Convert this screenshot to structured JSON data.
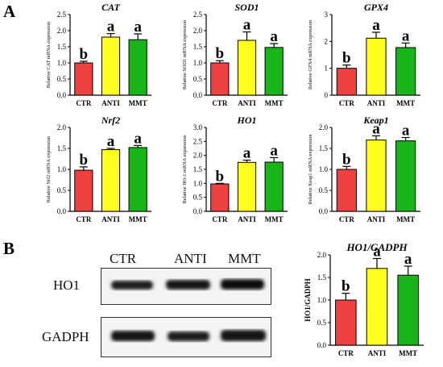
{
  "panels": {
    "a_label": "A",
    "b_label": "B"
  },
  "colors": {
    "CTR": "#f04040",
    "ANTI": "#ffff1f",
    "MMT": "#18b418"
  },
  "chart_data": [
    {
      "type": "bar",
      "title": "CAT",
      "ylabel": "Relative CAT mRNA expression",
      "categories": [
        "CTR",
        "ANTI",
        "MMT"
      ],
      "values": [
        1.0,
        1.8,
        1.72
      ],
      "errors": [
        0.05,
        0.11,
        0.18
      ],
      "letters": [
        "b",
        "a",
        "a"
      ],
      "ylim": [
        0,
        2.5
      ],
      "yticks": [
        "0.0",
        "0.5",
        "1.0",
        "1.5",
        "2.0",
        "2.5"
      ]
    },
    {
      "type": "bar",
      "title": "SOD1",
      "ylabel": "Relative SOD1 mRNA expression",
      "categories": [
        "CTR",
        "ANTI",
        "MMT"
      ],
      "values": [
        1.0,
        1.7,
        1.48
      ],
      "errors": [
        0.07,
        0.26,
        0.12
      ],
      "letters": [
        "b",
        "a",
        "a"
      ],
      "ylim": [
        0,
        2.5
      ],
      "yticks": [
        "0.0",
        "0.5",
        "1.0",
        "1.5",
        "2.0",
        "2.5"
      ]
    },
    {
      "type": "bar",
      "title": "GPX4",
      "ylabel": "Relative GPX4 mRNA expression",
      "categories": [
        "CTR",
        "ANTI",
        "MMT"
      ],
      "values": [
        1.0,
        2.12,
        1.77
      ],
      "errors": [
        0.12,
        0.22,
        0.17
      ],
      "letters": [
        "b",
        "a",
        "a"
      ],
      "ylim": [
        0,
        3
      ],
      "yticks": [
        "0",
        "1",
        "2",
        "3"
      ]
    },
    {
      "type": "bar",
      "title": "Nrf2",
      "ylabel": "Relative Nrf2 mRNA expression",
      "categories": [
        "CTR",
        "ANTI",
        "MMT"
      ],
      "values": [
        0.98,
        1.47,
        1.52
      ],
      "errors": [
        0.08,
        0.03,
        0.05
      ],
      "letters": [
        "b",
        "a",
        "a"
      ],
      "ylim": [
        0,
        2.0
      ],
      "yticks": [
        "0.0",
        "0.5",
        "1.0",
        "1.5",
        "2.0"
      ]
    },
    {
      "type": "bar",
      "title": "HO1",
      "ylabel": "Relative HO-1 mRNA expression",
      "categories": [
        "CTR",
        "ANTI",
        "MMT"
      ],
      "values": [
        0.98,
        1.75,
        1.76
      ],
      "errors": [
        0.02,
        0.08,
        0.16
      ],
      "letters": [
        "b",
        "a",
        "a"
      ],
      "ylim": [
        0,
        3.0
      ],
      "yticks": [
        "0.0",
        "0.5",
        "1.0",
        "1.5",
        "2.0",
        "2.5",
        "3.0"
      ]
    },
    {
      "type": "bar",
      "title": "Keap1",
      "ylabel": "Relative Keap1 mRNA expression",
      "categories": [
        "CTR",
        "ANTI",
        "MMT"
      ],
      "values": [
        1.0,
        1.7,
        1.68
      ],
      "errors": [
        0.07,
        0.1,
        0.08
      ],
      "letters": [
        "b",
        "a",
        "a"
      ],
      "ylim": [
        0,
        2.0
      ],
      "yticks": [
        "0.0",
        "0.5",
        "1.0",
        "1.5",
        "2.0"
      ]
    },
    {
      "type": "bar",
      "title": "HO1/GADPH",
      "ylabel": "HO1/GADPH",
      "categories": [
        "CTR",
        "ANTI",
        "MMT"
      ],
      "values": [
        1.0,
        1.7,
        1.55
      ],
      "errors": [
        0.15,
        0.22,
        0.2
      ],
      "letters": [
        "b",
        "a",
        "a"
      ],
      "ylim": [
        0,
        2.0
      ],
      "yticks": [
        "0.0",
        "0.5",
        "1.0",
        "1.5",
        "2.0"
      ]
    }
  ],
  "western_blot": {
    "lanes": [
      "CTR",
      "ANTI",
      "MMT"
    ],
    "proteins": [
      "HO1",
      "GADPH"
    ]
  }
}
